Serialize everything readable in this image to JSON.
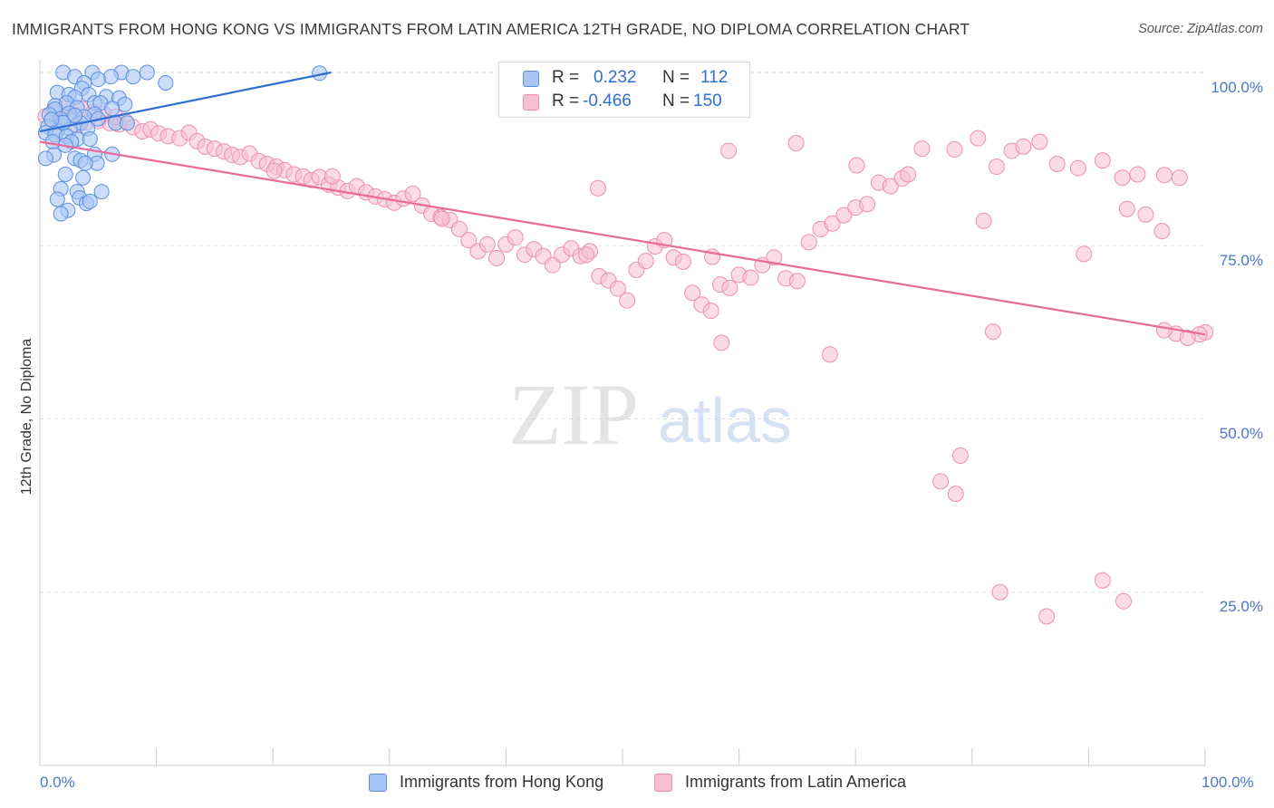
{
  "title": "IMMIGRANTS FROM HONG KONG VS IMMIGRANTS FROM LATIN AMERICA 12TH GRADE, NO DIPLOMA CORRELATION CHART",
  "source": "Source: ZipAtlas.com",
  "watermark": {
    "zip": "ZIP",
    "atlas": "atlas"
  },
  "legend": {
    "r_label": "R =",
    "n_label": "N =",
    "hong_kong": {
      "r": "0.232",
      "n": "112"
    },
    "latin_america": {
      "r": "-0.466",
      "n": "150"
    }
  },
  "colors": {
    "blue_fill": "#a8c6f5",
    "blue_stroke": "#5b8fe0",
    "blue_line": "#2e6fd0",
    "pink_fill": "#f7bfd2",
    "pink_stroke": "#ec8fb0",
    "pink_line": "#e8699a",
    "tick_text": "#4a78c9",
    "grid": "#dedede"
  },
  "chart_data": {
    "type": "scatter",
    "title": "IMMIGRANTS FROM HONG KONG VS IMMIGRANTS FROM LATIN AMERICA 12TH GRADE, NO DIPLOMA CORRELATION CHART",
    "xlabel": "",
    "ylabel": "12th Grade, No Diploma",
    "xlim": [
      0,
      100
    ],
    "ylim": [
      0,
      100
    ],
    "x_tick_labels": [
      "0.0%",
      "100.0%"
    ],
    "y_tick_labels": [
      "25.0%",
      "50.0%",
      "75.0%",
      "100.0%"
    ],
    "y_ticks": [
      25,
      50,
      75,
      100
    ],
    "grid": "horizontal dashed",
    "legend_position": "bottom",
    "series": [
      {
        "name": "Immigrants from Hong Kong",
        "color": "#a8c6f5",
        "trend": {
          "x": [
            0,
            25
          ],
          "y": [
            91.5,
            100
          ]
        },
        "points": [
          [
            2.0,
            100
          ],
          [
            4.5,
            100
          ],
          [
            7.0,
            100
          ],
          [
            9.2,
            100
          ],
          [
            10.8,
            98.5
          ],
          [
            3.0,
            99.4
          ],
          [
            8.0,
            99.4
          ],
          [
            6.1,
            99.4
          ],
          [
            3.8,
            98.5
          ],
          [
            5.0,
            99.0
          ],
          [
            3.6,
            97.7
          ],
          [
            1.5,
            97.1
          ],
          [
            2.5,
            96.8
          ],
          [
            4.2,
            96.8
          ],
          [
            5.7,
            96.5
          ],
          [
            3.0,
            96.4
          ],
          [
            6.8,
            96.3
          ],
          [
            4.7,
            95.6
          ],
          [
            1.3,
            95.2
          ],
          [
            2.3,
            95.6
          ],
          [
            5.2,
            95.6
          ],
          [
            7.3,
            95.4
          ],
          [
            6.2,
            94.8
          ],
          [
            3.2,
            94.9
          ],
          [
            1.3,
            94.7
          ],
          [
            2.5,
            94.1
          ],
          [
            4.7,
            94.0
          ],
          [
            0.8,
            93.9
          ],
          [
            3.8,
            93.6
          ],
          [
            5.0,
            93.3
          ],
          [
            1.8,
            93.3
          ],
          [
            3.5,
            92.7
          ],
          [
            2.0,
            92.7
          ],
          [
            6.5,
            92.7
          ],
          [
            7.5,
            92.7
          ],
          [
            0.7,
            92.2
          ],
          [
            2.6,
            91.8
          ],
          [
            4.1,
            91.9
          ],
          [
            1.5,
            91.6
          ],
          [
            0.5,
            91.3
          ],
          [
            1.3,
            91.0
          ],
          [
            2.3,
            90.8
          ],
          [
            3.2,
            90.4
          ],
          [
            4.3,
            90.4
          ],
          [
            2.7,
            90.0
          ],
          [
            1.1,
            90.0
          ],
          [
            2.2,
            89.5
          ],
          [
            1.2,
            88.1
          ],
          [
            0.5,
            87.6
          ],
          [
            4.7,
            88.2
          ],
          [
            6.2,
            88.2
          ],
          [
            3.0,
            87.6
          ],
          [
            3.5,
            87.3
          ],
          [
            4.9,
            86.9
          ],
          [
            3.9,
            86.9
          ],
          [
            2.2,
            85.3
          ],
          [
            3.7,
            84.8
          ],
          [
            1.8,
            83.2
          ],
          [
            3.2,
            82.8
          ],
          [
            5.3,
            82.8
          ],
          [
            3.4,
            81.9
          ],
          [
            1.5,
            81.7
          ],
          [
            4.0,
            81.1
          ],
          [
            4.3,
            81.4
          ],
          [
            2.4,
            80.1
          ],
          [
            1.8,
            79.6
          ],
          [
            24.0,
            99.9
          ],
          [
            2.0,
            92.8
          ],
          [
            1.0,
            93.2
          ],
          [
            3.0,
            93.8
          ]
        ]
      },
      {
        "name": "Immigrants from Latin America",
        "color": "#f7bfd2",
        "trend": {
          "x": [
            0,
            100
          ],
          "y": [
            90.0,
            62.2
          ]
        },
        "points": [
          [
            0.5,
            93.7
          ],
          [
            1.5,
            92.9
          ],
          [
            2.5,
            93.3
          ],
          [
            3.2,
            92.4
          ],
          [
            4.0,
            92.8
          ],
          [
            5.0,
            93.0
          ],
          [
            6.0,
            92.7
          ],
          [
            6.8,
            92.5
          ],
          [
            1.2,
            94.5
          ],
          [
            2.3,
            95.0
          ],
          [
            3.5,
            94.8
          ],
          [
            4.6,
            94.3
          ],
          [
            5.5,
            94.0
          ],
          [
            6.5,
            93.6
          ],
          [
            7.3,
            93.0
          ],
          [
            8.0,
            92.1
          ],
          [
            8.8,
            91.5
          ],
          [
            9.5,
            91.8
          ],
          [
            10.2,
            91.2
          ],
          [
            11.0,
            90.8
          ],
          [
            12.0,
            90.5
          ],
          [
            12.8,
            91.3
          ],
          [
            13.5,
            90.1
          ],
          [
            14.2,
            89.3
          ],
          [
            15.0,
            89.0
          ],
          [
            15.8,
            88.6
          ],
          [
            16.5,
            88.1
          ],
          [
            17.2,
            87.8
          ],
          [
            18.0,
            88.3
          ],
          [
            18.8,
            87.2
          ],
          [
            19.5,
            86.8
          ],
          [
            20.3,
            86.4
          ],
          [
            21.0,
            85.9
          ],
          [
            21.8,
            85.3
          ],
          [
            22.6,
            85.0
          ],
          [
            23.3,
            84.5
          ],
          [
            24.0,
            84.9
          ],
          [
            24.8,
            83.8
          ],
          [
            25.6,
            83.4
          ],
          [
            26.4,
            82.9
          ],
          [
            27.2,
            83.6
          ],
          [
            28.0,
            82.7
          ],
          [
            28.8,
            82.1
          ],
          [
            29.6,
            81.7
          ],
          [
            30.4,
            81.2
          ],
          [
            31.2,
            81.8
          ],
          [
            32.0,
            82.5
          ],
          [
            32.8,
            80.8
          ],
          [
            33.6,
            79.6
          ],
          [
            34.4,
            79.1
          ],
          [
            35.2,
            78.7
          ],
          [
            36.0,
            77.4
          ],
          [
            36.8,
            75.8
          ],
          [
            37.6,
            74.2
          ],
          [
            38.4,
            75.2
          ],
          [
            39.2,
            73.2
          ],
          [
            40.0,
            75.2
          ],
          [
            40.8,
            76.2
          ],
          [
            41.6,
            73.7
          ],
          [
            42.4,
            74.5
          ],
          [
            43.2,
            73.5
          ],
          [
            44.0,
            72.2
          ],
          [
            44.8,
            73.7
          ],
          [
            45.6,
            74.6
          ],
          [
            46.4,
            73.5
          ],
          [
            47.2,
            74.2
          ],
          [
            48.0,
            70.6
          ],
          [
            48.8,
            70.0
          ],
          [
            49.6,
            68.8
          ],
          [
            50.4,
            67.1
          ],
          [
            51.2,
            71.5
          ],
          [
            52.0,
            72.8
          ],
          [
            52.8,
            74.9
          ],
          [
            53.6,
            75.8
          ],
          [
            54.4,
            73.3
          ],
          [
            55.2,
            72.7
          ],
          [
            56.0,
            68.2
          ],
          [
            56.8,
            66.5
          ],
          [
            57.6,
            65.6
          ],
          [
            58.4,
            69.4
          ],
          [
            59.2,
            68.9
          ],
          [
            60.0,
            70.8
          ],
          [
            61.0,
            70.4
          ],
          [
            62.0,
            72.2
          ],
          [
            63.0,
            73.3
          ],
          [
            64.0,
            70.3
          ],
          [
            65.0,
            69.9
          ],
          [
            66.0,
            75.5
          ],
          [
            67.0,
            77.4
          ],
          [
            68.0,
            78.2
          ],
          [
            69.0,
            79.4
          ],
          [
            70.0,
            80.5
          ],
          [
            71.0,
            81.0
          ],
          [
            72.0,
            84.1
          ],
          [
            73.0,
            83.6
          ],
          [
            74.0,
            84.7
          ],
          [
            57.7,
            73.4
          ],
          [
            34.5,
            78.9
          ],
          [
            20.1,
            85.8
          ],
          [
            25.1,
            85.0
          ],
          [
            47.9,
            83.3
          ],
          [
            46.9,
            73.7
          ],
          [
            59.1,
            88.7
          ],
          [
            64.9,
            89.8
          ],
          [
            70.1,
            86.6
          ],
          [
            74.5,
            85.3
          ],
          [
            75.7,
            89.0
          ],
          [
            78.5,
            88.9
          ],
          [
            80.5,
            90.5
          ],
          [
            82.1,
            86.4
          ],
          [
            83.4,
            88.7
          ],
          [
            84.4,
            89.3
          ],
          [
            85.8,
            90.0
          ],
          [
            87.3,
            86.8
          ],
          [
            89.1,
            86.2
          ],
          [
            91.2,
            87.3
          ],
          [
            92.9,
            84.8
          ],
          [
            94.2,
            85.3
          ],
          [
            96.5,
            85.2
          ],
          [
            97.8,
            84.8
          ],
          [
            58.5,
            61.0
          ],
          [
            67.8,
            59.3
          ],
          [
            81.8,
            62.6
          ],
          [
            79.0,
            44.7
          ],
          [
            77.3,
            41.0
          ],
          [
            78.6,
            39.2
          ],
          [
            82.4,
            25.0
          ],
          [
            86.4,
            21.5
          ],
          [
            91.2,
            26.7
          ],
          [
            93.0,
            23.7
          ],
          [
            100.0,
            62.5
          ],
          [
            97.5,
            62.3
          ],
          [
            89.6,
            73.8
          ],
          [
            81.0,
            78.6
          ],
          [
            96.3,
            77.1
          ],
          [
            94.9,
            79.5
          ],
          [
            93.3,
            80.3
          ],
          [
            99.5,
            62.2
          ],
          [
            96.5,
            62.8
          ],
          [
            98.5,
            61.7
          ]
        ]
      }
    ]
  },
  "bottom_legend": {
    "hong_kong": "Immigrants from Hong Kong",
    "latin_america": "Immigrants from Latin America"
  },
  "axes": {
    "y_tick_100": "100.0%",
    "y_tick_75": "75.0%",
    "y_tick_50": "50.0%",
    "y_tick_25": "25.0%",
    "x_tick_0": "0.0%",
    "x_tick_100": "100.0%"
  }
}
